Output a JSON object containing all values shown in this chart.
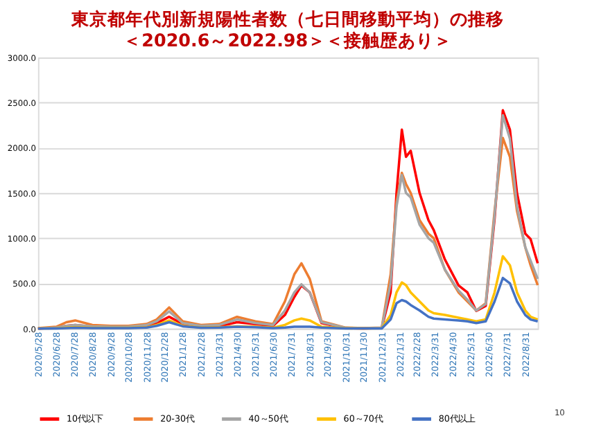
{
  "chart_data": {
    "type": "line",
    "title": "東京都年代別新規陽性者数（七日間移動平均）の推移",
    "subtitle": "＜2020.6～2022.98＞＜接触歴あり＞",
    "annotations": [
      "10"
    ],
    "x": [
      "2020-05-28",
      "2020-06-28",
      "2020-07-15",
      "2020-07-30",
      "2020-08-28",
      "2020-09-28",
      "2020-10-28",
      "2020-11-28",
      "2020-12-15",
      "2021-01-05",
      "2021-01-28",
      "2021-02-28",
      "2021-03-31",
      "2021-04-30",
      "2021-05-31",
      "2021-06-30",
      "2021-07-20",
      "2021-08-05",
      "2021-08-17",
      "2021-08-31",
      "2021-09-20",
      "2021-10-31",
      "2021-11-30",
      "2021-12-31",
      "2022-01-15",
      "2022-01-25",
      "2022-02-03",
      "2022-02-10",
      "2022-02-18",
      "2022-03-05",
      "2022-03-20",
      "2022-03-29",
      "2022-04-17",
      "2022-05-10",
      "2022-05-25",
      "2022-06-09",
      "2022-06-25",
      "2022-07-10",
      "2022-07-24",
      "2022-08-05",
      "2022-08-17",
      "2022-08-31",
      "2022-09-09",
      "2022-09-21"
    ],
    "series": [
      {
        "name": "10代以下",
        "color": "#ff0000",
        "values": [
          0,
          10,
          30,
          40,
          20,
          15,
          15,
          20,
          60,
          130,
          50,
          20,
          25,
          70,
          50,
          30,
          150,
          350,
          477,
          400,
          60,
          5,
          2,
          5,
          400,
          1500,
          2200,
          1900,
          1967,
          1500,
          1200,
          1090,
          763,
          477,
          400,
          195,
          250,
          1212,
          2415,
          2200,
          1497,
          1050,
          990,
          722
        ]
      },
      {
        "name": "20-30代",
        "color": "#ed7d31",
        "values": [
          5,
          20,
          70,
          90,
          40,
          30,
          30,
          50,
          100,
          233,
          80,
          40,
          50,
          130,
          80,
          50,
          300,
          600,
          722,
          550,
          80,
          10,
          5,
          10,
          600,
          1400,
          1722,
          1600,
          1500,
          1200,
          1050,
          1000,
          650,
          400,
          300,
          200,
          280,
          1300,
          2109,
          1900,
          1300,
          900,
          700,
          480
        ]
      },
      {
        "name": "40～50代",
        "color": "#a5a5a5",
        "values": [
          2,
          10,
          30,
          40,
          25,
          20,
          20,
          40,
          80,
          190,
          60,
          30,
          40,
          100,
          60,
          40,
          200,
          400,
          490,
          400,
          70,
          8,
          3,
          8,
          500,
          1350,
          1700,
          1500,
          1450,
          1150,
          1000,
          950,
          650,
          420,
          320,
          200,
          270,
          1250,
          2360,
          2100,
          1350,
          900,
          750,
          550
        ]
      },
      {
        "name": "60～70代",
        "color": "#ffc000",
        "values": [
          1,
          3,
          10,
          15,
          8,
          8,
          8,
          15,
          40,
          90,
          30,
          10,
          15,
          25,
          20,
          10,
          40,
          90,
          110,
          90,
          20,
          3,
          1,
          3,
          150,
          400,
          510,
          480,
          400,
          300,
          200,
          170,
          150,
          120,
          100,
          80,
          100,
          400,
          800,
          700,
          400,
          200,
          130,
          100
        ]
      },
      {
        "name": "80代以上",
        "color": "#4472c4",
        "values": [
          0,
          2,
          5,
          8,
          5,
          5,
          5,
          10,
          30,
          70,
          25,
          8,
          10,
          20,
          15,
          5,
          10,
          20,
          20,
          20,
          10,
          2,
          1,
          2,
          100,
          280,
          315,
          300,
          260,
          200,
          130,
          110,
          100,
          90,
          80,
          60,
          80,
          300,
          560,
          500,
          300,
          150,
          100,
          80
        ]
      }
    ],
    "xlim": [
      "2020-05-28",
      "2022-09-21"
    ],
    "xticks": [
      {
        "value": "2020-05-28",
        "label": "2020/5/28"
      },
      {
        "value": "2020-06-28",
        "label": "2020/6/28"
      },
      {
        "value": "2020-07-28",
        "label": "2020/7/28"
      },
      {
        "value": "2020-08-28",
        "label": "2020/8/28"
      },
      {
        "value": "2020-09-28",
        "label": "2020/9/28"
      },
      {
        "value": "2020-10-28",
        "label": "2020/10/28"
      },
      {
        "value": "2020-11-28",
        "label": "2020/11/28"
      },
      {
        "value": "2020-12-28",
        "label": "2020/12/28"
      },
      {
        "value": "2021-01-28",
        "label": "2021/1/28"
      },
      {
        "value": "2021-02-28",
        "label": "2021/2/28"
      },
      {
        "value": "2021-03-31",
        "label": "2021/3/31"
      },
      {
        "value": "2021-04-30",
        "label": "2021/4/30"
      },
      {
        "value": "2021-05-31",
        "label": "2021/5/31"
      },
      {
        "value": "2021-06-30",
        "label": "2021/6/30"
      },
      {
        "value": "2021-07-31",
        "label": "2021/7/31"
      },
      {
        "value": "2021-08-31",
        "label": "2021/8/31"
      },
      {
        "value": "2021-09-30",
        "label": "2021/9/30"
      },
      {
        "value": "2021-10-31",
        "label": "2021/10/31"
      },
      {
        "value": "2021-11-30",
        "label": "2021/11/30"
      },
      {
        "value": "2021-12-31",
        "label": "2021/12/31"
      },
      {
        "value": "2022-01-31",
        "label": "2022/1/31"
      },
      {
        "value": "2022-02-28",
        "label": "2022/2/28"
      },
      {
        "value": "2022-03-31",
        "label": "2022/3/31"
      },
      {
        "value": "2022-04-30",
        "label": "2022/4/30"
      },
      {
        "value": "2022-05-31",
        "label": "2022/5/31"
      },
      {
        "value": "2022-06-30",
        "label": "2022/6/30"
      },
      {
        "value": "2022-07-31",
        "label": "2022/7/31"
      },
      {
        "value": "2022-08-31",
        "label": "2022/8/31"
      }
    ],
    "ylim": [
      0,
      3000
    ],
    "yticks": [
      {
        "value": 0,
        "label": "0.0"
      },
      {
        "value": 500,
        "label": "500.0"
      },
      {
        "value": 1000,
        "label": "1000.0"
      },
      {
        "value": 1500,
        "label": "1500.0"
      },
      {
        "value": 2000,
        "label": "2000.0"
      },
      {
        "value": 2500,
        "label": "2500.0"
      },
      {
        "value": 3000,
        "label": "3000.0"
      }
    ],
    "grid": "y",
    "legend": "bottom",
    "marker": "none",
    "line_style": "solid"
  }
}
